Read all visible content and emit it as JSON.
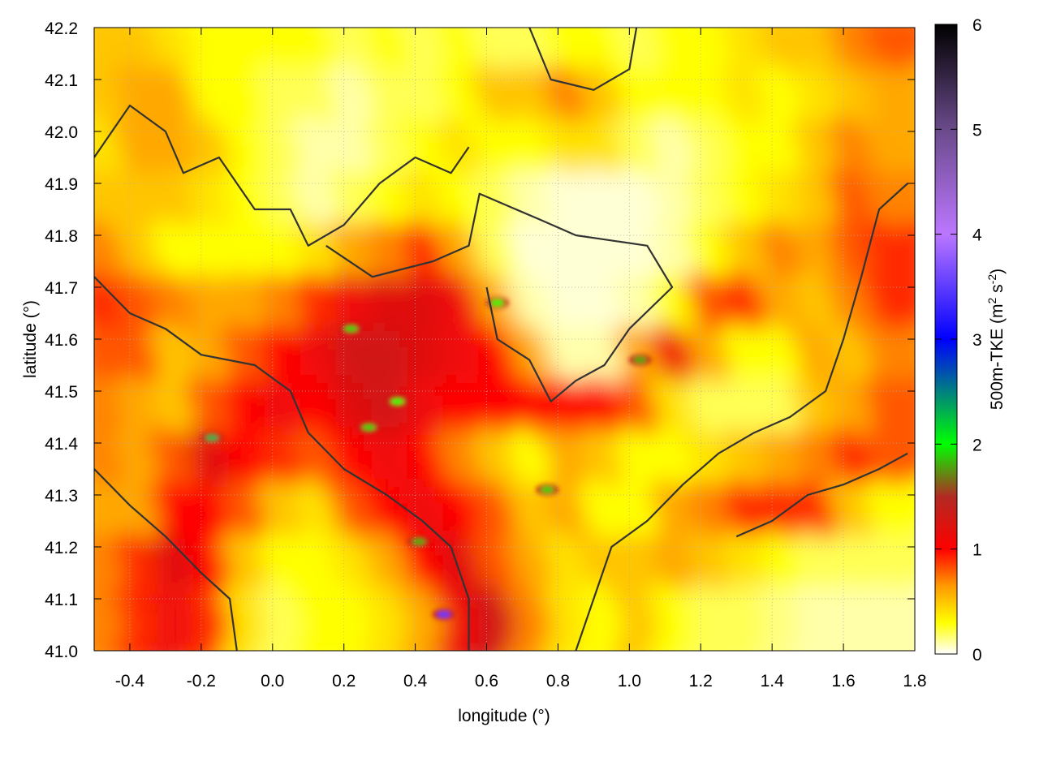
{
  "chart_data": {
    "type": "heatmap",
    "xlabel": "longitude (°)",
    "ylabel": "latitude (°)",
    "colorbar_label_main": "500m-TKE (m",
    "colorbar_label_sup1": "2",
    "colorbar_label_mid": " s",
    "colorbar_label_sup2": "-2",
    "colorbar_label_end": ")",
    "xlim": [
      -0.5,
      1.8
    ],
    "ylim": [
      41.0,
      42.2
    ],
    "zlim": [
      0,
      6
    ],
    "xticks": [
      "-0.4",
      "-0.2",
      "0.0",
      "0.2",
      "0.4",
      "0.6",
      "0.8",
      "1.0",
      "1.2",
      "1.4",
      "1.6",
      "1.8"
    ],
    "yticks": [
      "41.0",
      "41.1",
      "41.2",
      "41.3",
      "41.4",
      "41.5",
      "41.6",
      "41.7",
      "41.8",
      "41.9",
      "42.0",
      "42.1",
      "42.2"
    ],
    "cbticks": [
      "0",
      "1",
      "2",
      "3",
      "4",
      "5",
      "6"
    ],
    "grid": true,
    "colormap": [
      {
        "v": 0,
        "c": "#ffffff"
      },
      {
        "v": 0.3,
        "c": "#ffff00"
      },
      {
        "v": 0.65,
        "c": "#ff9900"
      },
      {
        "v": 1.0,
        "c": "#ff0000"
      },
      {
        "v": 1.5,
        "c": "#b22a22"
      },
      {
        "v": 2.0,
        "c": "#00ff00"
      },
      {
        "v": 2.5,
        "c": "#008080"
      },
      {
        "v": 3.0,
        "c": "#0000ff"
      },
      {
        "v": 4.0,
        "c": "#bb77ff"
      },
      {
        "v": 5.0,
        "c": "#6a4a8a"
      },
      {
        "v": 6.0,
        "c": "#000000"
      }
    ],
    "grid_lon_start": -0.5,
    "grid_lat_top": 42.2,
    "grid_step": 0.1,
    "values": [
      [
        0.5,
        0.5,
        0.4,
        0.3,
        0.3,
        0.3,
        0.3,
        0.2,
        0.3,
        0.2,
        0.3,
        0.2,
        0.2,
        0.3,
        0.3,
        0.2,
        0.3,
        0.3,
        0.4,
        0.5,
        0.5,
        0.7,
        0.8
      ],
      [
        0.5,
        0.6,
        0.6,
        0.3,
        0.3,
        0.2,
        0.2,
        0.1,
        0.2,
        0.2,
        0.3,
        0.5,
        0.5,
        0.7,
        0.5,
        0.3,
        0.3,
        0.3,
        0.4,
        0.3,
        0.4,
        0.5,
        0.6
      ],
      [
        0.4,
        0.6,
        0.6,
        0.5,
        0.3,
        0.2,
        0.1,
        0.1,
        0.2,
        0.3,
        0.4,
        0.3,
        0.3,
        0.4,
        0.4,
        0.2,
        0.1,
        0.2,
        0.3,
        0.3,
        0.5,
        0.7,
        0.6
      ],
      [
        0.5,
        0.5,
        0.5,
        0.4,
        0.3,
        0.2,
        0.1,
        0.2,
        0.3,
        0.4,
        0.3,
        0.2,
        0.1,
        0.05,
        0.05,
        0.05,
        0.1,
        0.2,
        0.3,
        0.4,
        0.5,
        0.8,
        0.7
      ],
      [
        0.7,
        0.5,
        0.3,
        0.3,
        0.3,
        0.3,
        0.4,
        0.6,
        0.7,
        0.9,
        0.6,
        0.2,
        0.05,
        0.05,
        0.05,
        0.05,
        0.1,
        0.3,
        0.5,
        0.7,
        0.6,
        0.8,
        0.9
      ],
      [
        0.9,
        0.8,
        0.7,
        0.6,
        0.6,
        0.7,
        0.9,
        1.1,
        1.2,
        1.2,
        1.1,
        0.6,
        0.1,
        0.05,
        0.05,
        0.1,
        0.3,
        0.8,
        0.9,
        0.6,
        0.5,
        0.7,
        0.9
      ],
      [
        0.8,
        0.8,
        0.5,
        0.6,
        0.8,
        1.0,
        1.1,
        1.3,
        1.3,
        1.2,
        1.1,
        1.0,
        0.6,
        0.1,
        0.1,
        0.6,
        1.1,
        0.6,
        0.3,
        0.3,
        0.6,
        0.5,
        0.7
      ],
      [
        0.7,
        0.6,
        0.5,
        0.8,
        1.0,
        1.1,
        1.0,
        1.2,
        1.3,
        1.1,
        1.0,
        1.0,
        1.0,
        1.0,
        1.0,
        0.8,
        0.4,
        0.2,
        0.2,
        0.2,
        0.5,
        0.6,
        0.8
      ],
      [
        0.7,
        0.6,
        0.8,
        1.2,
        1.0,
        0.9,
        0.8,
        1.0,
        1.1,
        1.0,
        0.7,
        0.5,
        0.3,
        0.6,
        0.5,
        0.3,
        0.3,
        0.4,
        0.5,
        0.6,
        0.7,
        0.9,
        0.8
      ],
      [
        0.6,
        0.6,
        1.0,
        1.0,
        0.8,
        0.5,
        0.4,
        0.8,
        1.0,
        1.1,
        1.0,
        0.8,
        0.5,
        0.6,
        0.3,
        0.3,
        0.6,
        0.7,
        0.9,
        0.9,
        0.9,
        0.5,
        0.3
      ],
      [
        0.7,
        0.9,
        1.2,
        1.0,
        0.5,
        0.3,
        0.3,
        0.4,
        0.6,
        1.0,
        1.2,
        0.8,
        0.6,
        0.4,
        0.5,
        0.5,
        0.6,
        0.5,
        0.4,
        0.3,
        0.2,
        0.2,
        0.2
      ],
      [
        0.7,
        0.9,
        1.1,
        0.9,
        0.4,
        0.2,
        0.3,
        0.3,
        0.4,
        0.6,
        1.1,
        1.3,
        0.7,
        0.4,
        0.3,
        0.5,
        0.3,
        0.2,
        0.2,
        0.15,
        0.1,
        0.1,
        0.1
      ]
    ],
    "peaks": [
      {
        "lon": -0.17,
        "lat": 41.41,
        "value": 2.3
      },
      {
        "lon": 0.22,
        "lat": 41.62,
        "value": 1.9
      },
      {
        "lon": 0.35,
        "lat": 41.48,
        "value": 2.0
      },
      {
        "lon": 0.27,
        "lat": 41.43,
        "value": 1.9
      },
      {
        "lon": 0.48,
        "lat": 41.07,
        "value": 3.5
      },
      {
        "lon": 0.63,
        "lat": 41.67,
        "value": 2.0
      },
      {
        "lon": 1.03,
        "lat": 41.56,
        "value": 1.8
      },
      {
        "lon": 0.77,
        "lat": 41.31,
        "value": 1.9
      },
      {
        "lon": 0.41,
        "lat": 41.21,
        "value": 1.8
      }
    ],
    "contours": [
      [
        [
          0.15,
          41.78
        ],
        [
          0.28,
          41.72
        ],
        [
          0.45,
          41.75
        ],
        [
          0.55,
          41.78
        ],
        [
          0.58,
          41.88
        ],
        [
          0.75,
          41.83
        ],
        [
          0.85,
          41.8
        ],
        [
          1.05,
          41.78
        ],
        [
          1.12,
          41.7
        ],
        [
          1.0,
          41.62
        ],
        [
          0.93,
          41.55
        ],
        [
          0.85,
          41.52
        ],
        [
          0.78,
          41.48
        ],
        [
          0.72,
          41.56
        ],
        [
          0.63,
          41.6
        ],
        [
          0.6,
          41.7
        ]
      ],
      [
        [
          -0.5,
          41.72
        ],
        [
          -0.4,
          41.65
        ],
        [
          -0.3,
          41.62
        ],
        [
          -0.2,
          41.57
        ],
        [
          -0.05,
          41.55
        ],
        [
          0.05,
          41.5
        ],
        [
          0.1,
          41.42
        ],
        [
          0.2,
          41.35
        ],
        [
          0.32,
          41.3
        ],
        [
          0.42,
          41.25
        ],
        [
          0.5,
          41.2
        ],
        [
          0.55,
          41.1
        ],
        [
          0.55,
          41.0
        ]
      ],
      [
        [
          -0.5,
          41.95
        ],
        [
          -0.4,
          42.05
        ],
        [
          -0.3,
          42.0
        ],
        [
          -0.25,
          41.92
        ],
        [
          -0.15,
          41.95
        ],
        [
          -0.05,
          41.85
        ],
        [
          0.05,
          41.85
        ],
        [
          0.1,
          41.78
        ],
        [
          0.2,
          41.82
        ],
        [
          0.3,
          41.9
        ],
        [
          0.4,
          41.95
        ],
        [
          0.5,
          41.92
        ],
        [
          0.55,
          41.97
        ]
      ],
      [
        [
          0.85,
          41.0
        ],
        [
          0.9,
          41.1
        ],
        [
          0.95,
          41.2
        ],
        [
          1.05,
          41.25
        ],
        [
          1.15,
          41.32
        ],
        [
          1.25,
          41.38
        ],
        [
          1.35,
          41.42
        ],
        [
          1.45,
          41.45
        ],
        [
          1.55,
          41.5
        ],
        [
          1.6,
          41.6
        ],
        [
          1.65,
          41.72
        ],
        [
          1.7,
          41.85
        ],
        [
          1.78,
          41.9
        ]
      ],
      [
        [
          1.3,
          41.22
        ],
        [
          1.4,
          41.25
        ],
        [
          1.5,
          41.3
        ],
        [
          1.6,
          41.32
        ],
        [
          1.7,
          41.35
        ],
        [
          1.78,
          41.38
        ]
      ],
      [
        [
          0.72,
          42.2
        ],
        [
          0.78,
          42.1
        ],
        [
          0.9,
          42.08
        ],
        [
          1.0,
          42.12
        ],
        [
          1.02,
          42.2
        ]
      ],
      [
        [
          -0.1,
          41.0
        ],
        [
          -0.12,
          41.1
        ],
        [
          -0.2,
          41.15
        ],
        [
          -0.3,
          41.22
        ],
        [
          -0.4,
          41.28
        ],
        [
          -0.5,
          41.35
        ]
      ]
    ]
  }
}
